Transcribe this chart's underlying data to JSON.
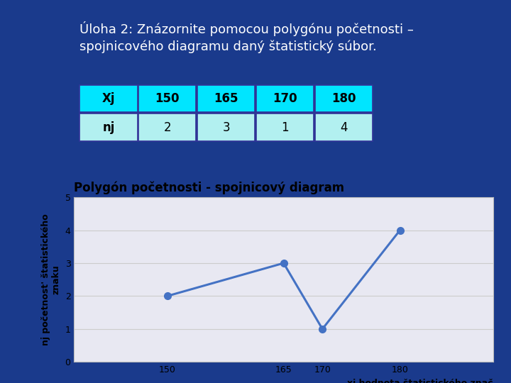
{
  "title_text_line1": "Úloha 2: Znázornite pomocou polygónu početnosti –",
  "title_text_line2": "spojnicového diagramu daný štatistický súbor.",
  "table_xj_label": "Xj",
  "table_nj_label": "nj",
  "xj_values": [
    150,
    165,
    170,
    180
  ],
  "nj_values": [
    2,
    3,
    1,
    4
  ],
  "chart_title": "Polygón početnosti - spojnicový diagram",
  "xlabel": "xj hodnota štatistického znač",
  "ylabel_line1": "nj početnost' štatistického",
  "ylabel_line2": "znaku",
  "bg_color": "#1a3a8c",
  "table_header_color": "#00e5ff",
  "table_row_color": "#b2f0f0",
  "table_border_color": "#333399",
  "chart_bg_color": "#e8e8f2",
  "chart_border_color": "#cccccc",
  "line_color": "#4472c4",
  "line_width": 2.2,
  "marker_size": 7,
  "ylim": [
    0,
    5
  ],
  "yticks": [
    0,
    1,
    2,
    3,
    4,
    5
  ],
  "title_fontsize": 13,
  "chart_title_fontsize": 12,
  "axis_label_fontsize": 9,
  "tick_fontsize": 9,
  "table_header_fontsize": 12,
  "table_val_fontsize": 12
}
